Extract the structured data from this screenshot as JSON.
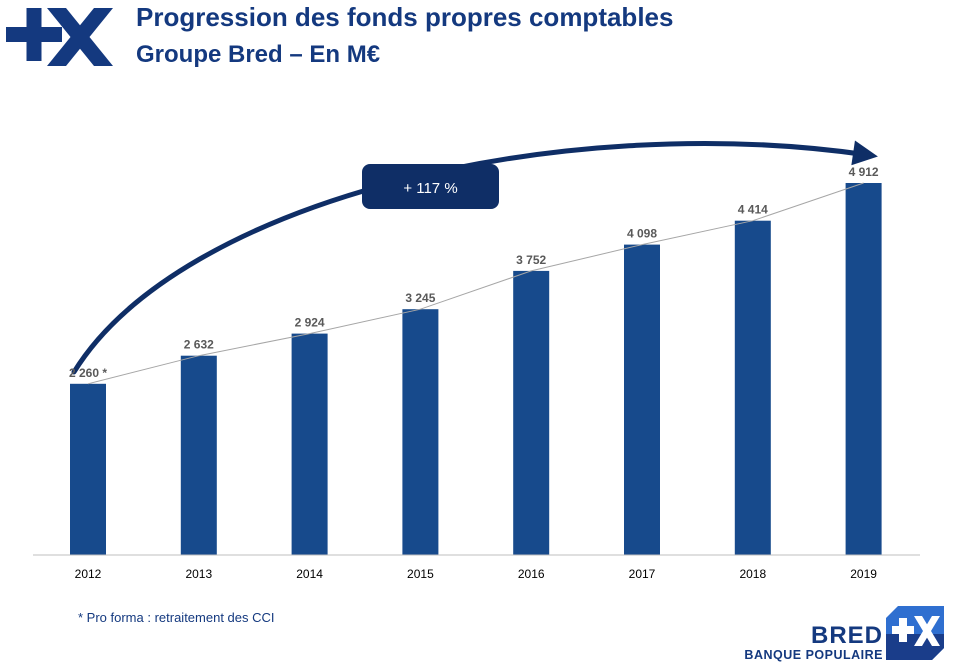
{
  "header": {
    "title": "Progression des fonds propres comptables",
    "subtitle": "Groupe Bred – En M€"
  },
  "chart_data": {
    "type": "bar",
    "categories": [
      "2012",
      "2013",
      "2014",
      "2015",
      "2016",
      "2017",
      "2018",
      "2019"
    ],
    "values": [
      2260,
      2632,
      2924,
      3245,
      3752,
      4098,
      4414,
      4912
    ],
    "data_labels": [
      "2 260 *",
      "2 632",
      "2 924",
      "3 245",
      "3 752",
      "4 098",
      "4 414",
      "4 912"
    ],
    "annotation": "+ 117 %",
    "trend_line": true,
    "grid": false,
    "bar_color": "#174a8c",
    "annotation_color": "#0f2e66"
  },
  "footnote": "* Pro forma : retraitement des CCI",
  "brand": {
    "name": "BRED",
    "tagline": "BANQUE POPULAIRE",
    "logo_icon": "plus-x-logo-icon"
  }
}
